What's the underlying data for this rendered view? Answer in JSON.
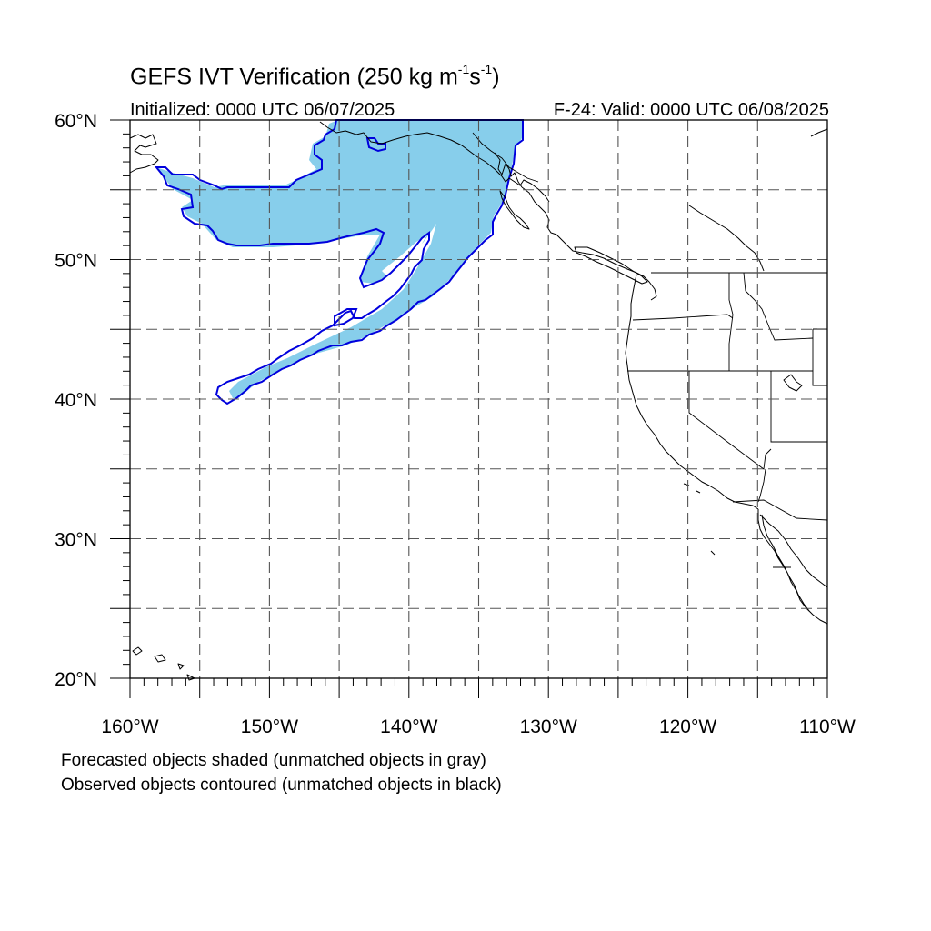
{
  "title": {
    "main": "GEFS IVT Verification (250 kg m",
    "exp1": "-1",
    "mid": "s",
    "exp2": "-1",
    "end": ")"
  },
  "initialized": "Initialized: 0000 UTC 06/07/2025",
  "valid": "F-24: Valid: 0000 UTC 06/08/2025",
  "axes": {
    "lat_labels": [
      {
        "text": "60°N",
        "lat": 60
      },
      {
        "text": "50°N",
        "lat": 50
      },
      {
        "text": "40°N",
        "lat": 40
      },
      {
        "text": "30°N",
        "lat": 30
      },
      {
        "text": "20°N",
        "lat": 20
      }
    ],
    "lon_labels": [
      {
        "text": "160°W",
        "lon": -160
      },
      {
        "text": "150°W",
        "lon": -150
      },
      {
        "text": "140°W",
        "lon": -140
      },
      {
        "text": "130°W",
        "lon": -130
      },
      {
        "text": "120°W",
        "lon": -120
      },
      {
        "text": "110°W",
        "lon": -110
      }
    ],
    "lon_range": [
      -160,
      -110
    ],
    "lat_range": [
      20,
      60
    ],
    "grid_spacing_deg": 5,
    "grid": "dashed"
  },
  "legend": {
    "line1": "Forecasted objects shaded (unmatched objects in gray)",
    "line2": "Observed objects contoured (unmatched objects in black)"
  },
  "colors": {
    "forecast_fill": "#87ceeb",
    "observed_contour": "#0000dd",
    "coastline": "#000000",
    "grid": "#555555"
  }
}
